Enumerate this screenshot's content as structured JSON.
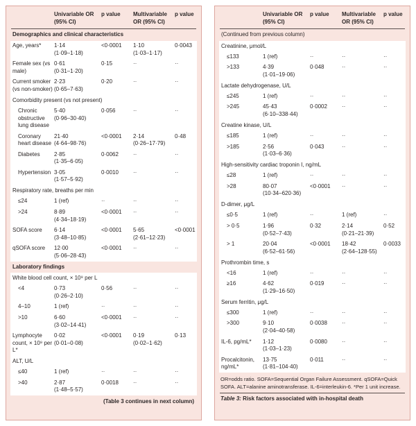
{
  "colors": {
    "panel_bg": "#f9e5e0",
    "panel_border": "#dda69e",
    "body_bg": "#ffffff",
    "rule": "#5a4f4d",
    "text": "#2b2626"
  },
  "header": {
    "columns": [
      "",
      "Univariable OR\n(95% CI)",
      "p value",
      "Multivariable\nOR (95% CI)",
      "p value"
    ]
  },
  "left_panel": {
    "rows": [
      {
        "type": "section",
        "label": "Demographics and clinical characteristics"
      },
      {
        "type": "data",
        "indent": false,
        "label": "Age, years*",
        "or": "1·14\n(1·09–1·18)",
        "p": "<0·0001",
        "mor": "1·10\n(1·03–1·17)",
        "p2": "0·0043"
      },
      {
        "type": "data",
        "indent": false,
        "label": "Female sex (vs male)",
        "or": "0·61\n(0·31–1·20)",
        "p": "0·15",
        "mor": "··",
        "p2": "··"
      },
      {
        "type": "data",
        "indent": false,
        "label": "Current smoker (vs non-smoker)",
        "or": "2·23\n(0·65–7·63)",
        "p": "0·20",
        "mor": "··",
        "p2": "··"
      },
      {
        "type": "subheader",
        "label": "Comorbidity present (vs not present)"
      },
      {
        "type": "data",
        "indent": true,
        "label": "Chronic obstructive lung disease",
        "or": "5·40\n(0·96–30·40)",
        "p": "0·056",
        "mor": "··",
        "p2": "··"
      },
      {
        "type": "data",
        "indent": true,
        "label": "Coronary heart disease",
        "or": "21·40\n(4·64–98·76)",
        "p": "<0·0001",
        "mor": "2·14\n(0·26–17·79)",
        "p2": "0·48"
      },
      {
        "type": "data",
        "indent": true,
        "label": "Diabetes",
        "or": "2·85\n(1·35–6·05)",
        "p": "0·0062",
        "mor": "··",
        "p2": "··"
      },
      {
        "type": "data",
        "indent": true,
        "label": "Hypertension",
        "or": "3·05\n(1·57–5·92)",
        "p": "0·0010",
        "mor": "··",
        "p2": "··"
      },
      {
        "type": "subheader",
        "label": "Respiratory rate, breaths per min"
      },
      {
        "type": "data",
        "indent": true,
        "label": "≤24",
        "or": "1 (ref)",
        "p": "··",
        "mor": "··",
        "p2": "··"
      },
      {
        "type": "data",
        "indent": true,
        "label": ">24",
        "or": "8·89\n(4·34–18·19)",
        "p": "<0·0001",
        "mor": "··",
        "p2": "··"
      },
      {
        "type": "data",
        "indent": false,
        "label": "SOFA score",
        "or": "6·14\n(3·48–10·85)",
        "p": "<0·0001",
        "mor": "5·65\n(2·61–12·23)",
        "p2": "<0·0001"
      },
      {
        "type": "data",
        "indent": false,
        "label": "qSOFA score",
        "or": "12·00\n(5·06–28·43)",
        "p": "<0·0001",
        "mor": "··",
        "p2": "··"
      },
      {
        "type": "section",
        "label": "Laboratory findings"
      },
      {
        "type": "subheader",
        "label": "White blood cell count, × 10⁹ per L"
      },
      {
        "type": "data",
        "indent": true,
        "label": "<4",
        "or": "0·73\n(0·26–2·10)",
        "p": "0·56",
        "mor": "··",
        "p2": "··"
      },
      {
        "type": "data",
        "indent": true,
        "label": "4–10",
        "or": "1 (ref)",
        "p": "··",
        "mor": "··",
        "p2": "··"
      },
      {
        "type": "data",
        "indent": true,
        "label": ">10",
        "or": "6·60\n(3·02–14·41)",
        "p": "<0·0001",
        "mor": "··",
        "p2": "··"
      },
      {
        "type": "data",
        "indent": false,
        "label": "Lymphocyte count, × 10⁹ per L*",
        "or": "0·02\n(0·01–0·08)",
        "p": "<0·0001",
        "mor": "0·19\n(0·02–1·62)",
        "p2": "0·13"
      },
      {
        "type": "subheader",
        "label": "ALT, U/L"
      },
      {
        "type": "data",
        "indent": true,
        "label": "≤40",
        "or": "1 (ref)",
        "p": "··",
        "mor": "··",
        "p2": "··"
      },
      {
        "type": "data",
        "indent": true,
        "label": ">40",
        "or": "2·87\n(1·48–5·57)",
        "p": "0·0018",
        "mor": "··",
        "p2": "··"
      }
    ],
    "footer_note": "(Table 3 continues in next column)"
  },
  "right_panel": {
    "rows": [
      {
        "type": "section",
        "plain": true,
        "label": "(Continued from previous column)"
      },
      {
        "type": "subheader",
        "label": "Creatinine, μmol/L"
      },
      {
        "type": "data",
        "indent": true,
        "label": "≤133",
        "or": "1 (ref)",
        "p": "··",
        "mor": "··",
        "p2": "··"
      },
      {
        "type": "data",
        "indent": true,
        "label": ">133",
        "or": "4·39\n(1·01–19·06)",
        "p": "0·048",
        "mor": "··",
        "p2": "··"
      },
      {
        "type": "subheader",
        "label": "Lactate dehydrogenase, U/L"
      },
      {
        "type": "data",
        "indent": true,
        "label": "≤245",
        "or": "1 (ref)",
        "p": "··",
        "mor": "··",
        "p2": "··"
      },
      {
        "type": "data",
        "indent": true,
        "label": ">245",
        "or": "45·43\n(6·10–338·44)",
        "p": "0·0002",
        "mor": "··",
        "p2": "··"
      },
      {
        "type": "subheader",
        "label": "Creatine kinase, U/L"
      },
      {
        "type": "data",
        "indent": true,
        "label": "≤185",
        "or": "1 (ref)",
        "p": "··",
        "mor": "··",
        "p2": "··"
      },
      {
        "type": "data",
        "indent": true,
        "label": ">185",
        "or": "2·56\n(1·03–6·36)",
        "p": "0·043",
        "mor": "··",
        "p2": "··"
      },
      {
        "type": "subheader",
        "label": "High-sensitivity cardiac troponin I, ng/mL"
      },
      {
        "type": "data",
        "indent": true,
        "label": "≤28",
        "or": "1 (ref)",
        "p": "··",
        "mor": "··",
        "p2": "··"
      },
      {
        "type": "data",
        "indent": true,
        "label": ">28",
        "or": "80·07\n(10·34–620·36)",
        "p": "<0·0001",
        "mor": "··",
        "p2": "··"
      },
      {
        "type": "subheader",
        "label": "D-dimer, μg/L"
      },
      {
        "type": "data",
        "indent": true,
        "label": "≤0·5",
        "or": "1 (ref)",
        "p": "··",
        "mor": "1 (ref)",
        "p2": "··"
      },
      {
        "type": "data",
        "indent": true,
        "label": "> 0·5",
        "or": "1·96\n(0·52–7·43)",
        "p": "0·32",
        "mor": "2·14\n(0·21–21·39)",
        "p2": "0·52"
      },
      {
        "type": "data",
        "indent": true,
        "label": "> 1",
        "or": "20·04\n(6·52–61·56)",
        "p": "<0·0001",
        "mor": "18·42\n(2·64–128·55)",
        "p2": "0·0033"
      },
      {
        "type": "subheader",
        "label": "Prothrombin time, s"
      },
      {
        "type": "data",
        "indent": true,
        "label": "<16",
        "or": "1 (ref)",
        "p": "··",
        "mor": "··",
        "p2": "··"
      },
      {
        "type": "data",
        "indent": true,
        "label": "≥16",
        "or": "4·62\n(1·29–16·50)",
        "p": "0·019",
        "mor": "··",
        "p2": "··"
      },
      {
        "type": "subheader",
        "label": "Serum ferritin, μg/L"
      },
      {
        "type": "data",
        "indent": true,
        "label": "≤300",
        "or": "1 (ref)",
        "p": "··",
        "mor": "··",
        "p2": "··"
      },
      {
        "type": "data",
        "indent": true,
        "label": ">300",
        "or": "9·10\n(2·04–40·58)",
        "p": "0·0038",
        "mor": "··",
        "p2": "··"
      },
      {
        "type": "data",
        "indent": false,
        "label": "IL-6, pg/mL*",
        "or": "1·12\n(1·03–1·23)",
        "p": "0·0080",
        "mor": "··",
        "p2": "··"
      },
      {
        "type": "data",
        "indent": false,
        "label": "Procalcitonin, ng/mL*",
        "or": "13·75\n(1·81–104·40)",
        "p": "0·011",
        "mor": "··",
        "p2": "··"
      }
    ],
    "footnote": "OR=odds ratio. SOFA=Sequential Organ Failure Assessment. qSOFA=Quick SOFA. ALT=alanine aminotransferase. IL-6=interleukin-6. *Per 1 unit increase.",
    "caption_label": "Table 3:",
    "caption_text": " Risk factors associated with in-hospital death"
  }
}
